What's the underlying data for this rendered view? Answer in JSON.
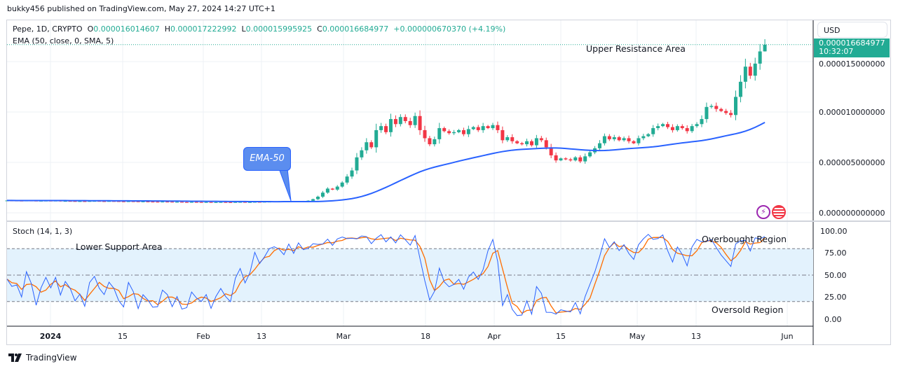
{
  "header": {
    "publisher_line": "bukky456 published on TradingView.com, May 27, 2024 14:27 UTC+1"
  },
  "legend": {
    "symbol": "Pepe, 1D, CRYPTO",
    "o_label": "O",
    "o": "0.000016014607",
    "h_label": "H",
    "h": "0.000017222992",
    "l_label": "L",
    "l": "0.000015995925",
    "c_label": "C",
    "c": "0.000016684977",
    "change": "+0.000000670370 (+4.19%)",
    "ema": "EMA (50, close, 0, SMA, 5)",
    "stoch": "Stoch (14, 1, 3)"
  },
  "price_axis": {
    "currency": "USD",
    "ticks": [
      "0.000015000000",
      "0.000010000000",
      "0.000005000000",
      "0.000000000000"
    ],
    "last_price": "0.000016684977",
    "countdown": "10:32:07"
  },
  "stoch_axis": {
    "ticks": [
      "100.00",
      "75.00",
      "50.00",
      "25.00",
      "0.00"
    ]
  },
  "time_axis": {
    "ticks": [
      "2024",
      "15",
      "Feb",
      "13",
      "Mar",
      "18",
      "Apr",
      "15",
      "May",
      "13",
      "Jun"
    ]
  },
  "annotations": {
    "upper": "Upper Resistance Area",
    "ema": "EMA-50",
    "lower": "Lower Support Area",
    "overbought": "Overbought Region",
    "oversold": "Oversold Region"
  },
  "footer": {
    "brand": "TradingView"
  },
  "colors": {
    "up": "#22ab94",
    "down": "#f23645",
    "ema": "#2962ff",
    "k": "#2962ff",
    "d": "#ff6d00",
    "band": "#e3f2fd"
  },
  "chart_data": {
    "type": "candlestick",
    "unit": "1e-6 USD",
    "first_date": "2023-12-23",
    "closes": [
      1.22,
      1.21,
      1.2,
      1.19,
      1.21,
      1.2,
      1.18,
      1.19,
      1.2,
      1.19,
      1.2,
      1.15,
      1.17,
      1.16,
      1.14,
      1.15,
      1.13,
      1.16,
      1.17,
      1.15,
      1.14,
      1.16,
      1.15,
      1.13,
      1.12,
      1.14,
      1.13,
      1.11,
      1.12,
      1.1,
      1.09,
      1.08,
      1.1,
      1.09,
      1.07,
      1.08,
      1.06,
      1.05,
      1.07,
      1.06,
      1.05,
      1.06,
      1.04,
      1.05,
      1.06,
      1.05,
      1.04,
      1.06,
      1.07,
      1.05,
      1.06,
      1.08,
      1.07,
      1.09,
      1.1,
      1.12,
      1.14,
      1.13,
      1.15,
      1.14,
      1.16,
      1.15,
      1.2,
      1.35,
      1.6,
      2.0,
      2.4,
      2.3,
      2.6,
      3.0,
      3.6,
      4.2,
      5.5,
      6.2,
      7.0,
      6.5,
      8.2,
      8.6,
      8.0,
      9.3,
      8.8,
      9.5,
      9.1,
      8.7,
      9.6,
      8.2,
      7.4,
      6.8,
      7.3,
      8.4,
      8.1,
      7.9,
      8.0,
      8.2,
      7.8,
      8.3,
      8.5,
      8.2,
      8.6,
      8.4,
      8.7,
      8.2,
      7.2,
      7.5,
      7.1,
      6.9,
      6.8,
      7.1,
      6.7,
      7.4,
      7.2,
      6.5,
      5.7,
      5.2,
      5.4,
      5.3,
      5.2,
      5.5,
      5.1,
      5.6,
      6.0,
      6.4,
      6.9,
      7.6,
      7.3,
      7.5,
      7.2,
      7.4,
      7.1,
      6.9,
      7.4,
      7.6,
      7.8,
      8.4,
      8.6,
      8.8,
      8.5,
      8.2,
      8.6,
      8.4,
      8.1,
      8.6,
      8.8,
      9.3,
      10.5,
      10.6,
      10.3,
      10.1,
      9.9,
      9.7,
      11.5,
      13.0,
      14.5,
      13.6,
      14.8,
      16.01,
      16.68
    ],
    "last_candle": {
      "open": 16.014607,
      "high": 17.222992,
      "low": 15.995925,
      "close": 16.684977
    },
    "ylim": [
      0,
      19
    ],
    "stoch_ylim": [
      0,
      100
    ],
    "stoch_bands": [
      20,
      50,
      80
    ],
    "indicators": [
      "EMA (50, close, 0, SMA, 5)",
      "Stoch (14, 1, 3)"
    ]
  }
}
